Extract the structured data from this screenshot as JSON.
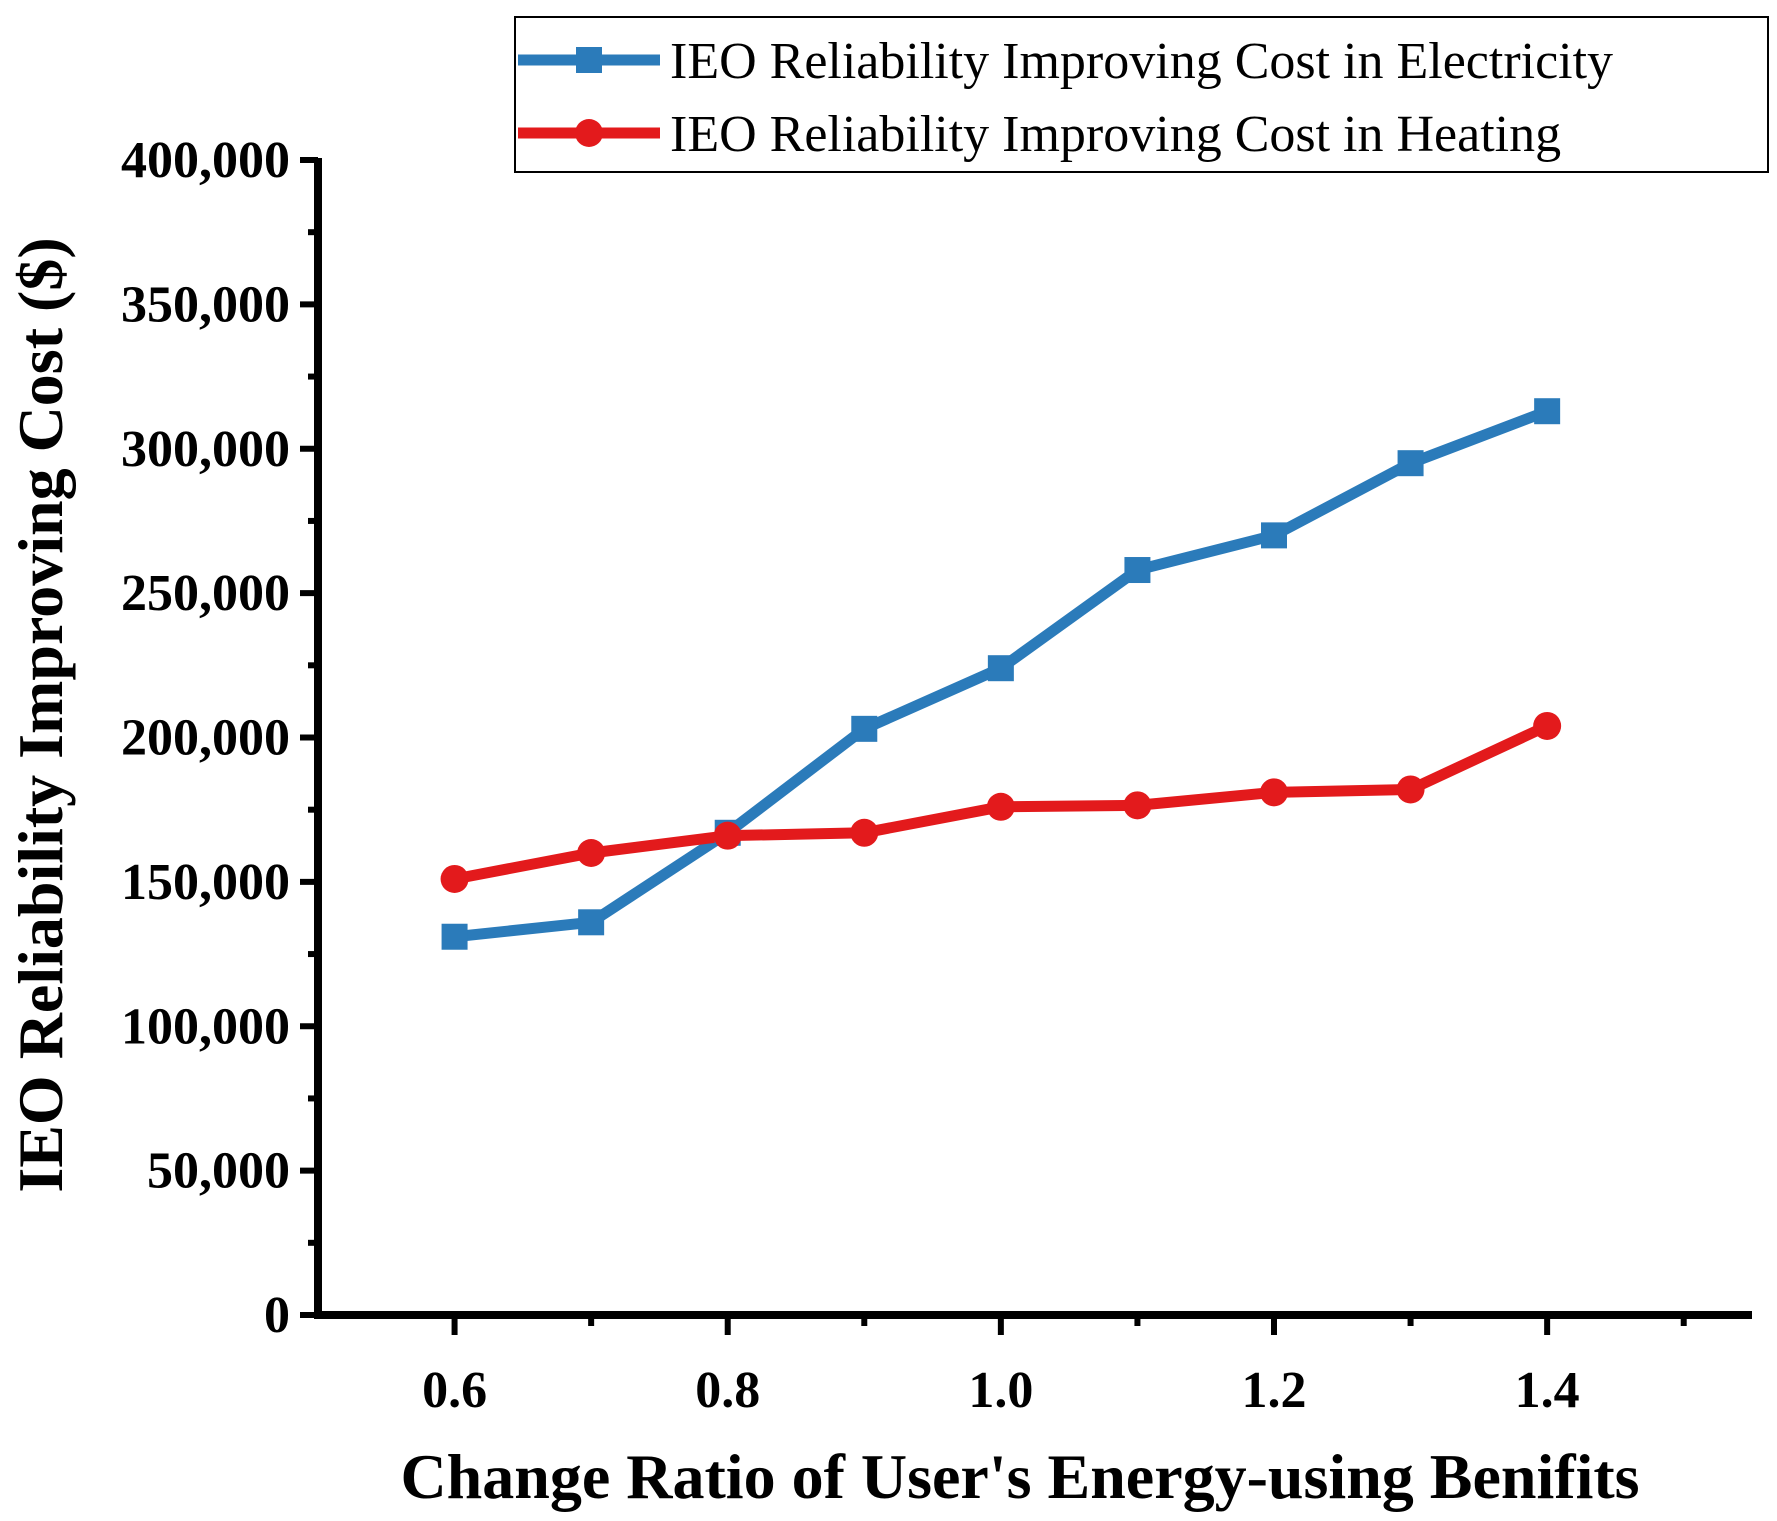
{
  "chart_data": {
    "type": "line",
    "title": "",
    "xlabel": "Change Ratio of User's Energy-using Benifits",
    "ylabel": "IEO Reliability Improving Cost ($)",
    "x": [
      0.6,
      0.7,
      0.8,
      0.9,
      1.0,
      1.1,
      1.2,
      1.3,
      1.4
    ],
    "xlim": [
      0.5,
      1.55
    ],
    "ylim": [
      0,
      400000
    ],
    "xticks": [
      0.6,
      0.8,
      1.0,
      1.2,
      1.4
    ],
    "xtick_labels": [
      "0.6",
      "0.8",
      "1.0",
      "1.2",
      "1.4"
    ],
    "yticks": [
      0,
      50000,
      100000,
      150000,
      200000,
      250000,
      300000,
      350000,
      400000
    ],
    "ytick_labels": [
      "0",
      "50,000",
      "100,000",
      "150,000",
      "200,000",
      "250,000",
      "300,000",
      "350,000",
      "400,000"
    ],
    "grid": false,
    "legend_position": "top-right",
    "series": [
      {
        "name": "IEO Reliability Improving Cost in Electricity",
        "color": "#2b7bba",
        "marker": "square",
        "values": [
          131000,
          136000,
          167000,
          203000,
          224000,
          258000,
          270000,
          295000,
          313000
        ]
      },
      {
        "name": "IEO Reliability Improving Cost in Heating",
        "color": "#e31a1c",
        "marker": "circle",
        "values": [
          151000,
          160000,
          166000,
          167000,
          176000,
          176500,
          181000,
          182000,
          204000
        ]
      }
    ]
  }
}
